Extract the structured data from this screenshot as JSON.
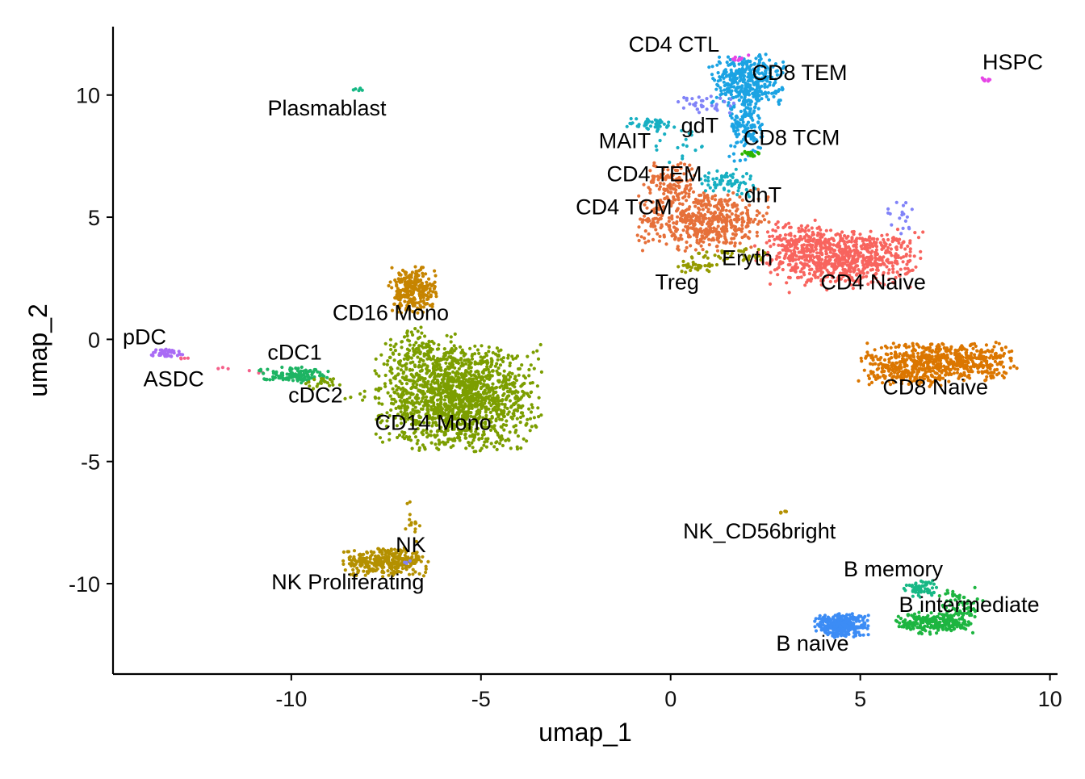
{
  "chart_data": {
    "type": "scatter",
    "title": "",
    "xlabel": "umap_1",
    "ylabel": "umap_2",
    "xlim": [
      -14.7,
      10.2
    ],
    "ylim": [
      -13.7,
      12.8
    ],
    "xticks": [
      -10,
      -5,
      0,
      5,
      10
    ],
    "yticks": [
      10,
      5,
      0,
      -5,
      -10
    ],
    "xtick_labels": [
      "-10",
      "-5",
      "0",
      "5",
      "10"
    ],
    "ytick_labels": [
      "10",
      "5",
      "0",
      "-5",
      "-10"
    ],
    "grid": false,
    "legend": "none",
    "clusters": [
      {
        "name": "CD4 Naive",
        "color": "#F8645E",
        "label": [
          5.34,
          2.34
        ],
        "blobs": [
          [
            4.6,
            3.3,
            0.95,
            0.55,
            700
          ],
          [
            3.4,
            4.0,
            0.55,
            0.4,
            150
          ]
        ]
      },
      {
        "name": "CD4 TCM",
        "color": "#E6703A",
        "label": [
          -1.23,
          5.41
        ],
        "blobs": [
          [
            0.9,
            4.9,
            0.85,
            0.6,
            520
          ],
          [
            0.0,
            6.4,
            0.35,
            0.45,
            120
          ]
        ]
      },
      {
        "name": "CD8 Naive",
        "color": "#DB7600",
        "label": [
          6.98,
          -1.95
        ],
        "blobs": [
          [
            7.1,
            -0.9,
            0.95,
            0.4,
            600
          ],
          [
            6.2,
            -1.5,
            0.6,
            0.2,
            80
          ]
        ]
      },
      {
        "name": "CD14 Mono",
        "color": "#7C9E00",
        "label": [
          -6.26,
          -3.4
        ],
        "blobs": [
          [
            -5.6,
            -2.4,
            1.0,
            1.0,
            1500
          ],
          [
            -6.6,
            -0.6,
            0.45,
            0.5,
            120
          ]
        ]
      },
      {
        "name": "CD16 Mono",
        "color": "#C68400",
        "label": [
          -7.38,
          1.09
        ],
        "blobs": [
          [
            -6.8,
            2.0,
            0.3,
            0.45,
            260
          ]
        ]
      },
      {
        "name": "NK",
        "color": "#B49000",
        "label": [
          -6.85,
          -8.42
        ],
        "blobs": [
          [
            -7.5,
            -9.1,
            0.55,
            0.28,
            320
          ],
          [
            -6.8,
            -7.4,
            0.15,
            0.5,
            15
          ]
        ]
      },
      {
        "name": "NK Proliferating",
        "color": "#8183F8",
        "label": [
          -8.51,
          -9.93
        ],
        "blobs": [
          [
            -6.9,
            -9.1,
            0.08,
            0.06,
            4
          ]
        ]
      },
      {
        "name": "CD8 TEM",
        "color": "#1BA3E3",
        "label": [
          3.4,
          10.92
        ],
        "blobs": [
          [
            2.0,
            10.6,
            0.45,
            0.5,
            350
          ],
          [
            2.0,
            8.9,
            0.22,
            0.8,
            160
          ]
        ]
      },
      {
        "name": "CD4 CTL",
        "color": "#E645E6",
        "label": [
          0.09,
          12.08
        ],
        "blobs": [
          [
            1.8,
            11.5,
            0.15,
            0.08,
            12
          ]
        ]
      },
      {
        "name": "gdT",
        "color": "#8183F8",
        "label": [
          0.77,
          8.75
        ],
        "blobs": [
          [
            1.0,
            9.6,
            0.4,
            0.25,
            35
          ],
          [
            6.1,
            5.0,
            0.22,
            0.4,
            18
          ]
        ]
      },
      {
        "name": "MAIT",
        "color": "#17AFC2",
        "label": [
          -1.21,
          8.12
        ],
        "blobs": [
          [
            -0.5,
            8.8,
            0.3,
            0.15,
            45
          ],
          [
            0.3,
            8.0,
            0.4,
            0.4,
            20
          ]
        ]
      },
      {
        "name": "CD8 TCM",
        "color": "#2DB500",
        "label": [
          3.19,
          8.25
        ],
        "blobs": [
          [
            2.1,
            7.6,
            0.15,
            0.1,
            20
          ]
        ]
      },
      {
        "name": "CD4 TEM",
        "color": "#17AFC2",
        "label": [
          -0.43,
          6.77
        ],
        "blobs": [
          [
            1.5,
            6.5,
            0.4,
            0.22,
            65
          ]
        ]
      },
      {
        "name": "dnT",
        "color": "#17AFC2",
        "label": [
          2.43,
          5.91
        ],
        "blobs": [
          [
            2.0,
            6.0,
            0.15,
            0.15,
            6
          ]
        ]
      },
      {
        "name": "Eryth",
        "color": "#949A00",
        "label": [
          2.02,
          3.33
        ],
        "blobs": [
          [
            1.5,
            3.4,
            0.5,
            0.15,
            40
          ]
        ]
      },
      {
        "name": "Treg",
        "color": "#949A00",
        "label": [
          0.17,
          2.34
        ],
        "blobs": [
          [
            0.6,
            3.0,
            0.3,
            0.12,
            30
          ]
        ]
      },
      {
        "name": "pDC",
        "color": "#A96BF5",
        "label": [
          -13.87,
          0.1
        ],
        "blobs": [
          [
            -13.3,
            -0.55,
            0.2,
            0.08,
            40
          ]
        ]
      },
      {
        "name": "ASDC",
        "color": "#F5608A",
        "label": [
          -13.1,
          -1.62
        ],
        "blobs": [
          [
            -12.9,
            -0.8,
            0.1,
            0.04,
            4
          ],
          [
            -11.8,
            -1.15,
            0.15,
            0.05,
            3
          ],
          [
            -10.9,
            -1.3,
            0.2,
            0.05,
            3
          ]
        ]
      },
      {
        "name": "cDC1",
        "color": "#1DB463",
        "label": [
          -9.91,
          -0.53
        ],
        "blobs": [
          [
            -9.9,
            -1.45,
            0.45,
            0.15,
            120
          ]
        ]
      },
      {
        "name": "cDC2",
        "color": "#7C9E00",
        "label": [
          -9.36,
          -2.28
        ],
        "blobs": [
          [
            -9.2,
            -1.8,
            0.3,
            0.12,
            20
          ],
          [
            -8.2,
            -2.2,
            0.4,
            0.15,
            8
          ]
        ]
      },
      {
        "name": "Plasmablast",
        "color": "#17B885",
        "label": [
          -9.06,
          9.47
        ],
        "blobs": [
          [
            -8.3,
            10.25,
            0.08,
            0.04,
            6
          ]
        ]
      },
      {
        "name": "HSPC",
        "color": "#E645E6",
        "label": [
          9.02,
          11.35
        ],
        "blobs": [
          [
            8.3,
            10.65,
            0.07,
            0.05,
            8
          ]
        ]
      },
      {
        "name": "NK_CD56bright",
        "color": "#B49000",
        "label": [
          2.34,
          -7.85
        ],
        "blobs": [
          [
            2.95,
            -7.05,
            0.07,
            0.03,
            6
          ]
        ]
      },
      {
        "name": "B naive",
        "color": "#3C8CF5",
        "label": [
          3.74,
          -12.44
        ],
        "blobs": [
          [
            4.5,
            -11.7,
            0.33,
            0.23,
            350
          ]
        ]
      },
      {
        "name": "B intermediate",
        "color": "#1DB540",
        "label": [
          7.87,
          -10.86
        ],
        "blobs": [
          [
            7.0,
            -11.6,
            0.5,
            0.22,
            230
          ],
          [
            7.6,
            -10.8,
            0.3,
            0.3,
            60
          ]
        ]
      },
      {
        "name": "B memory",
        "color": "#17B885",
        "label": [
          5.87,
          -9.41
        ],
        "blobs": [
          [
            6.6,
            -10.2,
            0.22,
            0.18,
            60
          ]
        ]
      }
    ]
  }
}
